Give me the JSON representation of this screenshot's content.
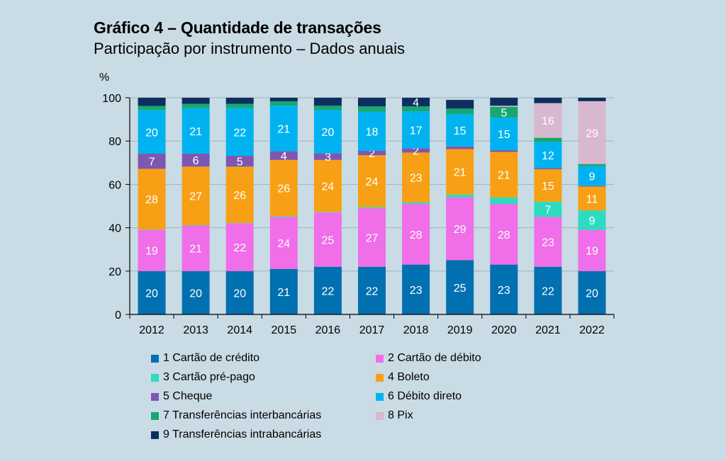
{
  "title": "Gráfico 4 – Quantidade de transações",
  "subtitle": "Participação por instrumento – Dados anuais",
  "chart_data": {
    "type": "bar",
    "stacked": true,
    "ylabel": "%",
    "ylim": [
      0,
      100
    ],
    "yticks": [
      0,
      20,
      40,
      60,
      80,
      100
    ],
    "grid": true,
    "legend_position": "bottom",
    "categories": [
      "2012",
      "2013",
      "2014",
      "2015",
      "2016",
      "2017",
      "2018",
      "2019",
      "2020",
      "2021",
      "2022"
    ],
    "series": [
      {
        "name": "1 Cartão de crédito",
        "color": "#0070b0",
        "values": [
          20,
          20,
          20,
          21,
          22,
          22,
          23,
          25,
          23,
          22,
          20
        ],
        "labels": [
          "20",
          "20",
          "20",
          "21",
          "22",
          "22",
          "23",
          "25",
          "23",
          "22",
          "20"
        ]
      },
      {
        "name": "2 Cartão de débito",
        "color": "#f06ee8",
        "values": [
          19,
          21,
          22,
          24,
          25,
          27,
          28,
          29,
          28,
          23,
          19
        ],
        "labels": [
          "19",
          "21",
          "22",
          "24",
          "25",
          "27",
          "28",
          "29",
          "28",
          "23",
          "19"
        ]
      },
      {
        "name": "3 Cartão pré-pago",
        "color": "#2ddbc0",
        "values": [
          0.2,
          0.2,
          0.2,
          0.3,
          0.3,
          0.5,
          0.7,
          1.3,
          3,
          7,
          9
        ],
        "labels": [
          "",
          "",
          "",
          "",
          "",
          "",
          "",
          "",
          "",
          "7",
          "9"
        ]
      },
      {
        "name": "4 Boleto",
        "color": "#f7a015",
        "values": [
          28,
          27,
          26,
          26,
          24,
          24,
          23,
          21,
          21,
          15,
          11
        ],
        "labels": [
          "28",
          "27",
          "26",
          "26",
          "24",
          "24",
          "23",
          "21",
          "21",
          "15",
          "11"
        ]
      },
      {
        "name": "5 Cheque",
        "color": "#7e58b0",
        "values": [
          7,
          6,
          5,
          4,
          3,
          2,
          2,
          1.2,
          0.8,
          0.5,
          0.4
        ],
        "labels": [
          "7",
          "6",
          "5",
          "4",
          "3",
          "2",
          "2",
          "",
          "",
          "",
          ""
        ]
      },
      {
        "name": "6 Débito direto",
        "color": "#00b3f0",
        "values": [
          20,
          21,
          22,
          21,
          20,
          18,
          17,
          15,
          15,
          12,
          9
        ],
        "labels": [
          "20",
          "21",
          "22",
          "21",
          "20",
          "18",
          "17",
          "15",
          "15",
          "12",
          "9"
        ]
      },
      {
        "name": "7 Transferências interbancárias",
        "color": "#16a872",
        "values": [
          2,
          2,
          2,
          2,
          2,
          2.5,
          2.3,
          2.5,
          5,
          2,
          1
        ],
        "labels": [
          "",
          "",
          "",
          "",
          "",
          "",
          "",
          "",
          "5",
          "",
          ""
        ]
      },
      {
        "name": "8 Pix",
        "color": "#d8b7d0",
        "values": [
          0,
          0,
          0,
          0,
          0,
          0,
          0,
          0,
          0.5,
          16,
          29
        ],
        "labels": [
          "",
          "",
          "",
          "",
          "",
          "",
          "",
          "",
          "",
          "16",
          "29"
        ]
      },
      {
        "name": "9 Transferências intrabancárias",
        "color": "#0d2f60",
        "values": [
          4,
          3,
          3,
          3,
          3.7,
          4,
          4,
          4,
          3.7,
          2.5,
          1.6
        ],
        "labels": [
          "",
          "",
          "",
          "",
          "",
          "",
          "4",
          "",
          "",
          "",
          ""
        ]
      }
    ]
  }
}
